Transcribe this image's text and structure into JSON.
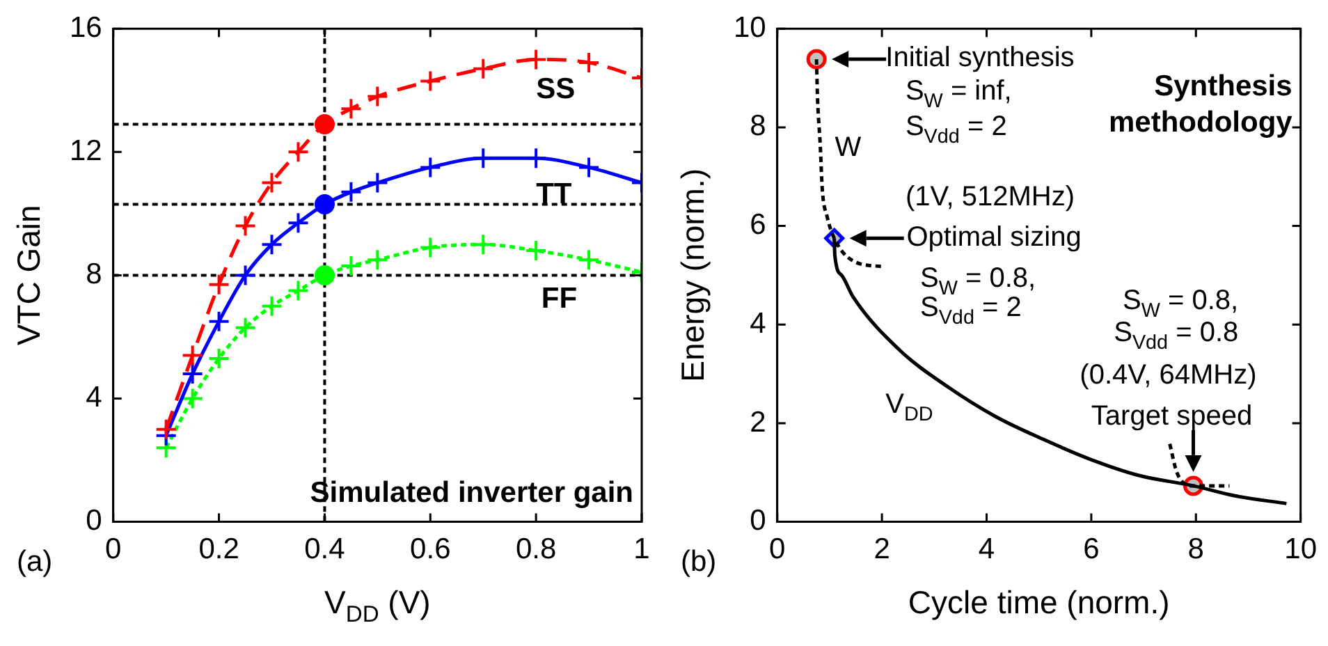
{
  "chart_data": [
    {
      "type": "line",
      "xlabel": "V$_{DD}$ (V)",
      "ylabel": "VTC Gain",
      "xlim": [
        0,
        1
      ],
      "xticks": [
        0,
        0.2,
        0.4,
        0.6,
        0.8,
        1
      ],
      "ylim": [
        0,
        16
      ],
      "yticks": [
        0,
        4,
        8,
        12,
        16
      ],
      "x": [
        0.1,
        0.15,
        0.2,
        0.25,
        0.3,
        0.35,
        0.4,
        0.45,
        0.5,
        0.6,
        0.7,
        0.8,
        0.9,
        1.0
      ],
      "series": [
        {
          "color": "#ff0000",
          "line_style": "dashed",
          "marker": "cross",
          "values": [
            3.0,
            5.4,
            7.7,
            9.6,
            11.0,
            12.0,
            12.9,
            13.4,
            13.8,
            14.3,
            14.7,
            15.0,
            14.9,
            14.4
          ]
        },
        {
          "color": "#0000ff",
          "line_style": "solid",
          "marker": "cross",
          "values": [
            2.8,
            4.8,
            6.5,
            8.0,
            9.0,
            9.7,
            10.3,
            10.7,
            11.0,
            11.5,
            11.8,
            11.8,
            11.5,
            11.0
          ]
        },
        {
          "color": "#00ff00",
          "line_style": "dotted",
          "marker": "cross",
          "values": [
            2.4,
            4.0,
            5.3,
            6.3,
            7.0,
            7.5,
            8.0,
            8.3,
            8.5,
            8.9,
            9.0,
            8.8,
            8.5,
            8.1
          ]
        },
        {
          "type": "scatter",
          "marker": "circle",
          "x": [
            0.4,
            0.4,
            0.4
          ],
          "values": [
            12.9,
            10.3,
            8.0
          ],
          "colors": [
            "#ff0000",
            "#0000ff",
            "#00ff00"
          ]
        }
      ],
      "ref_lines": [
        {
          "axis": "x",
          "value": 0.4,
          "line_style": "dotted",
          "color": "#000000"
        },
        {
          "axis": "y",
          "value": 12.9,
          "line_style": "dotted",
          "color": "#000000"
        },
        {
          "axis": "y",
          "value": 10.3,
          "line_style": "dotted",
          "color": "#000000"
        },
        {
          "axis": "y",
          "value": 8.0,
          "line_style": "dotted",
          "color": "#000000"
        }
      ],
      "annotations": [
        "SS",
        "TT",
        "FF",
        "Simulated inverter gain",
        "(a)"
      ]
    },
    {
      "type": "line",
      "xlabel": "Cycle time (norm.)",
      "ylabel": "Energy (norm.)",
      "xlim": [
        0,
        10
      ],
      "xticks": [
        0,
        2,
        4,
        6,
        8,
        10
      ],
      "ylim": [
        0,
        10
      ],
      "yticks": [
        0,
        2,
        4,
        6,
        8,
        10
      ],
      "series": [
        {
          "color": "#000000",
          "line_style": "solid",
          "marker": "none",
          "x": [
            1.09,
            1.1,
            1.23,
            1.45,
            2.36,
            3.27,
            4.18,
            5.09,
            6.0,
            6.91,
            7.95,
            8.73,
            9.73
          ],
          "values": [
            5.75,
            5.4,
            5.0,
            4.56,
            3.46,
            2.73,
            2.13,
            1.67,
            1.26,
            0.94,
            0.73,
            0.53,
            0.37
          ]
        },
        {
          "color": "#000000",
          "line_style": "dotted",
          "marker": "none",
          "x": [
            0.75,
            0.77,
            0.82,
            0.86,
            0.95,
            1.09,
            1.45,
            2.05
          ],
          "values": [
            9.38,
            8.58,
            7.67,
            6.75,
            6.2,
            5.75,
            5.29,
            5.17
          ]
        },
        {
          "color": "#000000",
          "line_style": "dotted",
          "marker": "none",
          "x": [
            7.5,
            7.64,
            7.95,
            8.64
          ],
          "values": [
            1.58,
            0.99,
            0.73,
            0.73
          ]
        },
        {
          "type": "scatter",
          "marker": "circle",
          "color": "#ff0000",
          "x": [
            0.75,
            7.95
          ],
          "values": [
            9.38,
            0.73
          ]
        },
        {
          "type": "scatter",
          "marker": "diamond",
          "color": "#0000ff",
          "x": [
            1.09
          ],
          "values": [
            5.75
          ]
        }
      ],
      "annotations": [
        "Initial synthesis",
        "S$_{W}$ = inf,",
        "S$_{Vdd}$ = 2",
        "W",
        "(1V, 512MHz)",
        "Optimal sizing",
        "S$_{W}$ = 0.8,",
        "S$_{Vdd}$ = 2",
        "S$_{W}$ = 0.8,",
        "S$_{Vdd}$ = 0.8",
        "(0.4V, 64MHz)",
        "Target speed",
        "V$_{DD}$",
        "Synthesis\nmethodology",
        "(b)"
      ]
    }
  ]
}
